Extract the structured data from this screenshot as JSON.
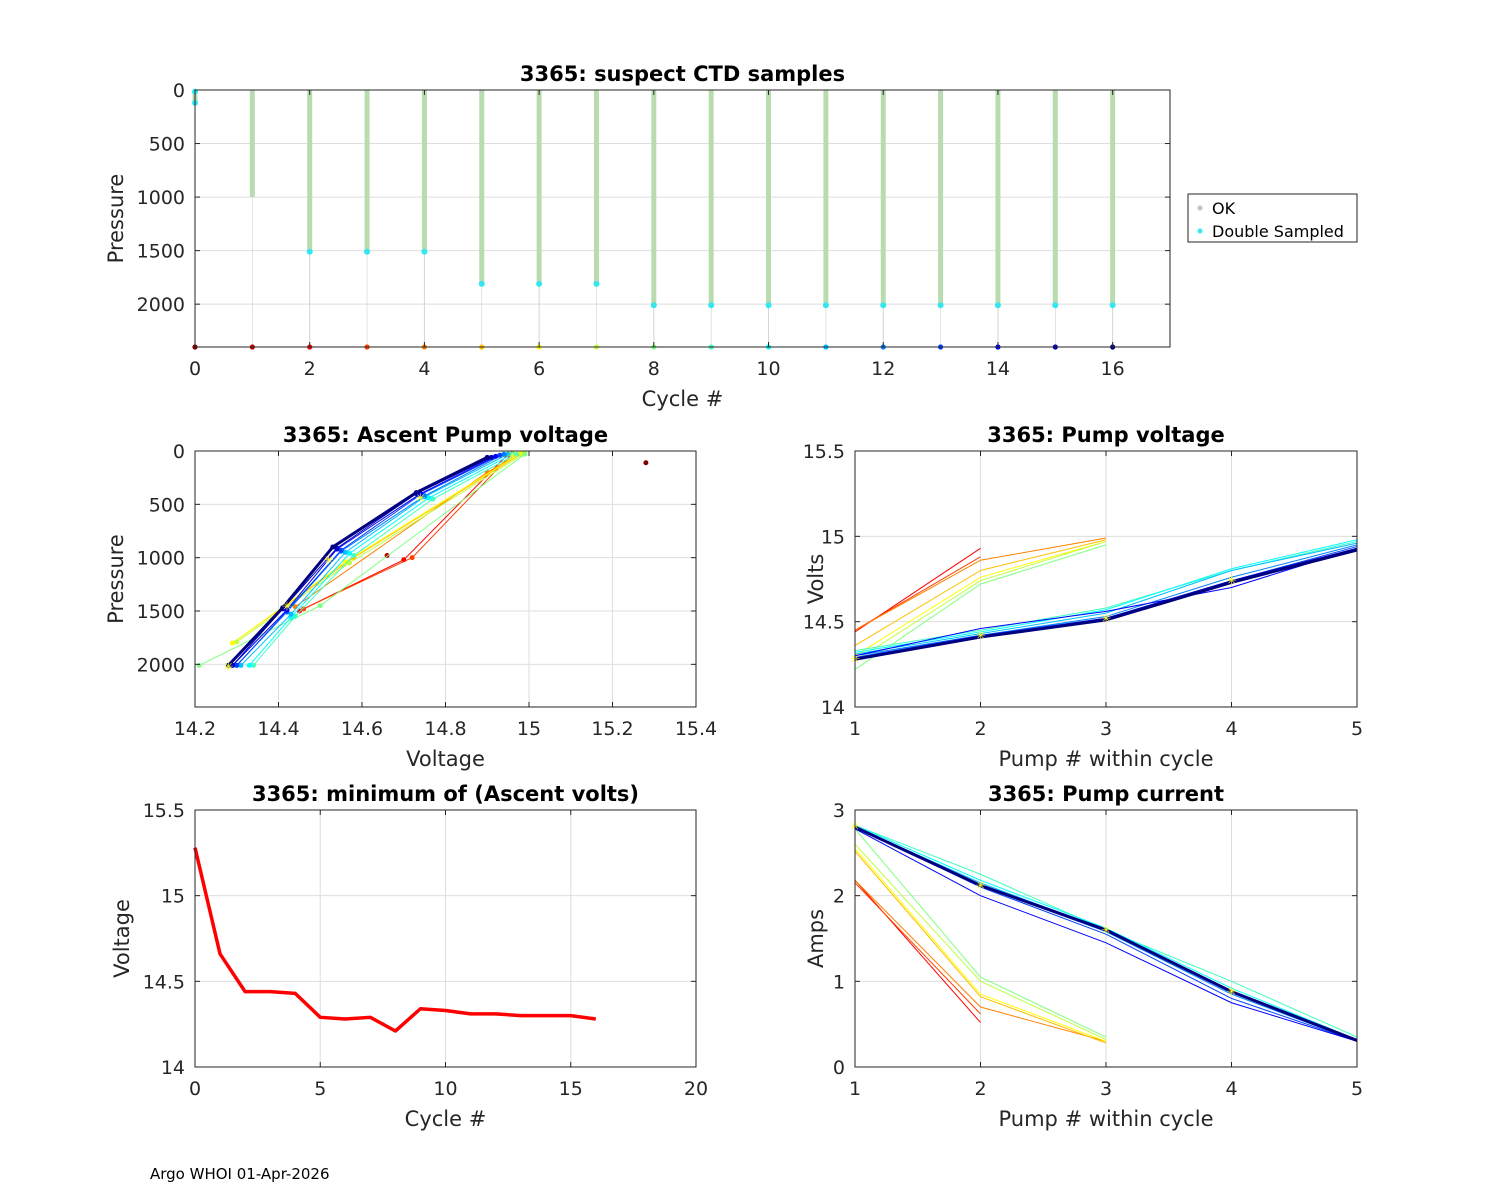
{
  "footer": "Argo WHOI 01-Apr-2026",
  "palette": {
    "ok": "#b8dcb0",
    "double_sampled": "#33e6f0",
    "min_line": "#ff0000",
    "grid": "#dedede",
    "marker": "#ffff00"
  },
  "chart_data": [
    {
      "id": "ctd",
      "type": "scatter",
      "title": "3365: suspect CTD samples",
      "xlabel": "Cycle #",
      "ylabel": "Pressure",
      "xlim": [
        0,
        17
      ],
      "ylim": [
        2400,
        0
      ],
      "xticks": [
        0,
        2,
        4,
        6,
        8,
        10,
        12,
        14,
        16
      ],
      "yticks": [
        0,
        500,
        1000,
        1500,
        2000
      ],
      "legend": {
        "position": "outside-right",
        "entries": [
          "OK",
          "Double Sampled"
        ]
      },
      "cycles": [
        0,
        1,
        2,
        3,
        4,
        5,
        6,
        7,
        8,
        9,
        10,
        11,
        12,
        13,
        14,
        15,
        16
      ],
      "max_pressure": [
        120,
        1000,
        1510,
        1510,
        1510,
        1810,
        1810,
        1810,
        2010,
        2010,
        2010,
        2010,
        2010,
        2010,
        2010,
        2010,
        2010
      ],
      "double_sampled_pressure": [
        120,
        null,
        1510,
        1510,
        1510,
        1810,
        1810,
        1810,
        2010,
        2010,
        2010,
        2010,
        2010,
        2010,
        2010,
        2010,
        2010
      ],
      "cycle_marker_pressure": 2400
    },
    {
      "id": "ascent",
      "type": "line",
      "title": "3365: Ascent Pump voltage",
      "xlabel": "Voltage",
      "ylabel": "Pressure",
      "xlim": [
        14.2,
        15.4
      ],
      "ylim": [
        2400,
        0
      ],
      "xticks": [
        14.2,
        14.4,
        14.6,
        14.8,
        15,
        15.2,
        15.4
      ],
      "yticks": [
        0,
        500,
        1000,
        1500,
        2000
      ],
      "series": [
        {
          "cycle": 0,
          "points": [
            [
              15.28,
              110
            ]
          ]
        },
        {
          "cycle": 1,
          "points": [
            [
              14.66,
              980
            ]
          ]
        },
        {
          "cycle": 2,
          "points": [
            [
              14.45,
              1500
            ],
            [
              14.7,
              1020
            ],
            [
              14.95,
              30
            ]
          ]
        },
        {
          "cycle": 3,
          "points": [
            [
              14.46,
              1480
            ],
            [
              14.72,
              1000
            ],
            [
              14.96,
              25
            ]
          ]
        },
        {
          "cycle": 4,
          "points": [
            [
              14.44,
              1460
            ],
            [
              14.9,
              200
            ],
            [
              14.98,
              20
            ]
          ]
        },
        {
          "cycle": 5,
          "points": [
            [
              14.29,
              1800
            ],
            [
              14.58,
              1000
            ],
            [
              14.98,
              30
            ]
          ]
        },
        {
          "cycle": 6,
          "points": [
            [
              14.29,
              1800
            ],
            [
              14.56,
              1040
            ],
            [
              14.98,
              20
            ]
          ]
        },
        {
          "cycle": 7,
          "points": [
            [
              14.3,
              1790
            ],
            [
              14.57,
              1050
            ],
            [
              14.99,
              20
            ]
          ]
        },
        {
          "cycle": 8,
          "points": [
            [
              14.21,
              2010
            ],
            [
              14.5,
              1450
            ],
            [
              14.99,
              30
            ]
          ]
        },
        {
          "cycle": 9,
          "points": [
            [
              14.34,
              2010
            ],
            [
              14.44,
              1550
            ],
            [
              14.58,
              980
            ],
            [
              14.77,
              450
            ],
            [
              14.97,
              30
            ]
          ]
        },
        {
          "cycle": 10,
          "points": [
            [
              14.33,
              2010
            ],
            [
              14.43,
              1560
            ],
            [
              14.57,
              960
            ],
            [
              14.76,
              440
            ],
            [
              14.96,
              30
            ]
          ]
        },
        {
          "cycle": 11,
          "points": [
            [
              14.31,
              2010
            ],
            [
              14.43,
              1530
            ],
            [
              14.56,
              950
            ],
            [
              14.75,
              430
            ],
            [
              14.95,
              30
            ]
          ]
        },
        {
          "cycle": 12,
          "points": [
            [
              14.3,
              2010
            ],
            [
              14.42,
              1510
            ],
            [
              14.55,
              940
            ],
            [
              14.75,
              420
            ],
            [
              14.94,
              30
            ]
          ]
        },
        {
          "cycle": 13,
          "points": [
            [
              14.3,
              2010
            ],
            [
              14.42,
              1500
            ],
            [
              14.55,
              930
            ],
            [
              14.74,
              410
            ],
            [
              14.93,
              40
            ]
          ]
        },
        {
          "cycle": 14,
          "points": [
            [
              14.29,
              2010
            ],
            [
              14.42,
              1490
            ],
            [
              14.54,
              920
            ],
            [
              14.74,
              400
            ],
            [
              14.92,
              50
            ]
          ]
        },
        {
          "cycle": 15,
          "points": [
            [
              14.29,
              2010
            ],
            [
              14.41,
              1480
            ],
            [
              14.54,
              910
            ],
            [
              14.73,
              400
            ],
            [
              14.91,
              60
            ]
          ]
        },
        {
          "cycle": 16,
          "points": [
            [
              14.28,
              2010
            ],
            [
              14.41,
              1470
            ],
            [
              14.53,
              900
            ],
            [
              14.73,
              390
            ],
            [
              14.9,
              60
            ]
          ]
        }
      ],
      "markers": [
        [
          14.28,
          2020
        ],
        [
          14.42,
          1460
        ],
        [
          14.52,
          1020
        ],
        [
          14.74,
          440
        ],
        [
          14.96,
          40
        ]
      ]
    },
    {
      "id": "pumpv",
      "type": "line",
      "title": "3365: Pump voltage",
      "xlabel": "Pump # within cycle",
      "ylabel": "Volts",
      "xlim": [
        1,
        5
      ],
      "ylim": [
        14,
        15.5
      ],
      "xticks": [
        1,
        2,
        3,
        4,
        5
      ],
      "yticks": [
        14,
        14.5,
        15,
        15.5
      ],
      "series": [
        {
          "cycle": 2,
          "y": [
            14.44,
            14.93
          ]
        },
        {
          "cycle": 3,
          "y": [
            14.45,
            14.88
          ]
        },
        {
          "cycle": 4,
          "y": [
            14.45,
            14.86,
            14.99
          ]
        },
        {
          "cycle": 5,
          "y": [
            14.36,
            14.8,
            14.98
          ]
        },
        {
          "cycle": 6,
          "y": [
            14.3,
            14.76,
            14.97
          ]
        },
        {
          "cycle": 7,
          "y": [
            14.27,
            14.74,
            14.97
          ]
        },
        {
          "cycle": 8,
          "y": [
            14.22,
            14.72,
            14.95
          ]
        },
        {
          "cycle": 9,
          "y": [
            14.33,
            14.45,
            14.58,
            14.8,
            14.97
          ]
        },
        {
          "cycle": 10,
          "y": [
            14.32,
            14.44,
            14.57,
            14.81,
            14.98
          ]
        },
        {
          "cycle": 11,
          "y": [
            14.31,
            14.43,
            14.55,
            14.8,
            14.96
          ]
        },
        {
          "cycle": 12,
          "y": [
            14.3,
            14.42,
            14.53,
            14.76,
            14.95
          ]
        },
        {
          "cycle": 13,
          "y": [
            14.29,
            14.42,
            14.52,
            14.74,
            14.94
          ]
        },
        {
          "cycle": 14,
          "y": [
            14.3,
            14.46,
            14.56,
            14.7,
            14.93
          ]
        },
        {
          "cycle": 15,
          "y": [
            14.28,
            14.41,
            14.52,
            14.74,
            14.93
          ]
        },
        {
          "cycle": 16,
          "y": [
            14.28,
            14.41,
            14.51,
            14.73,
            14.92
          ]
        }
      ],
      "markers": [
        [
          1,
          14.28
        ],
        [
          2,
          14.42
        ],
        [
          3,
          14.52
        ],
        [
          4,
          14.74
        ]
      ]
    },
    {
      "id": "minv",
      "type": "line",
      "title": "3365: minimum of (Ascent volts)",
      "xlabel": "Cycle #",
      "ylabel": "Voltage",
      "xlim": [
        0,
        20
      ],
      "ylim": [
        14,
        15.5
      ],
      "xticks": [
        0,
        5,
        10,
        15,
        20
      ],
      "yticks": [
        14,
        14.5,
        15,
        15.5
      ],
      "x": [
        0,
        1,
        2,
        3,
        4,
        5,
        6,
        7,
        8,
        9,
        10,
        11,
        12,
        13,
        14,
        15,
        16
      ],
      "y": [
        15.28,
        14.66,
        14.44,
        14.44,
        14.43,
        14.29,
        14.28,
        14.29,
        14.21,
        14.34,
        14.33,
        14.31,
        14.31,
        14.3,
        14.3,
        14.3,
        14.28
      ]
    },
    {
      "id": "pumpc",
      "type": "line",
      "title": "3365: Pump current",
      "xlabel": "Pump # within cycle",
      "ylabel": "Amps",
      "xlim": [
        1,
        5
      ],
      "ylim": [
        0,
        3
      ],
      "xticks": [
        1,
        2,
        3,
        4,
        5
      ],
      "yticks": [
        0,
        1,
        2,
        3
      ],
      "series": [
        {
          "cycle": 2,
          "y": [
            2.18,
            0.52
          ]
        },
        {
          "cycle": 3,
          "y": [
            2.15,
            0.62
          ]
        },
        {
          "cycle": 4,
          "y": [
            2.18,
            0.7,
            0.3
          ]
        },
        {
          "cycle": 5,
          "y": [
            2.52,
            0.82,
            0.28
          ]
        },
        {
          "cycle": 6,
          "y": [
            2.55,
            0.85,
            0.3
          ]
        },
        {
          "cycle": 7,
          "y": [
            2.6,
            1.0,
            0.32
          ]
        },
        {
          "cycle": 8,
          "y": [
            2.78,
            1.05,
            0.35
          ]
        },
        {
          "cycle": 9,
          "y": [
            2.82,
            2.25,
            1.6,
            1.0,
            0.35
          ]
        },
        {
          "cycle": 10,
          "y": [
            2.82,
            2.18,
            1.62,
            0.92,
            0.32
          ]
        },
        {
          "cycle": 11,
          "y": [
            2.8,
            2.15,
            1.6,
            0.88,
            0.32
          ]
        },
        {
          "cycle": 12,
          "y": [
            2.8,
            2.12,
            1.58,
            0.85,
            0.3
          ]
        },
        {
          "cycle": 13,
          "y": [
            2.8,
            2.1,
            1.55,
            0.8,
            0.3
          ]
        },
        {
          "cycle": 14,
          "y": [
            2.78,
            2.0,
            1.45,
            0.75,
            0.3
          ]
        },
        {
          "cycle": 15,
          "y": [
            2.8,
            2.12,
            1.6,
            0.88,
            0.3
          ]
        },
        {
          "cycle": 16,
          "y": [
            2.8,
            2.12,
            1.6,
            0.88,
            0.31
          ]
        }
      ],
      "markers": [
        [
          1,
          2.81
        ],
        [
          2,
          2.12
        ],
        [
          3,
          1.6
        ],
        [
          4,
          0.88
        ]
      ]
    }
  ]
}
